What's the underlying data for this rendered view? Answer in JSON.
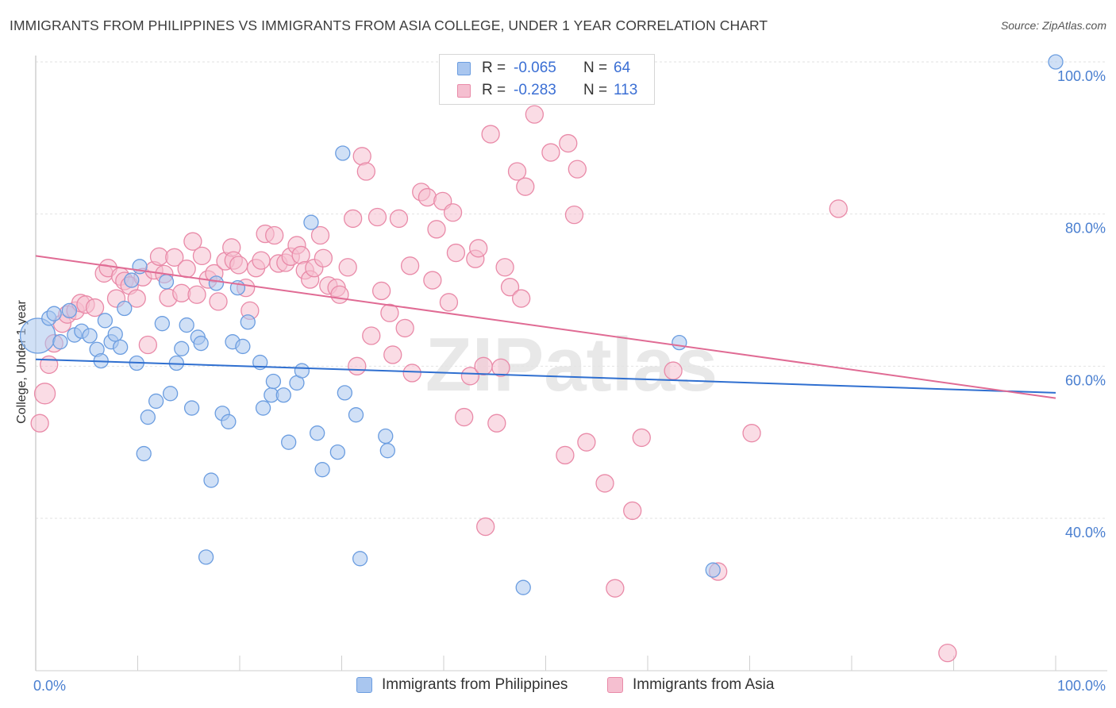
{
  "title": "IMMIGRANTS FROM PHILIPPINES VS IMMIGRANTS FROM ASIA COLLEGE, UNDER 1 YEAR CORRELATION CHART",
  "source": "Source: ZipAtlas.com",
  "watermark": "ZIPatlas",
  "colors": {
    "blue": "#6b9de0",
    "blue_fill": "#a9c6ef",
    "blue_line": "#2f6fd0",
    "pink": "#e98aa8",
    "pink_fill": "#f5bfd0",
    "pink_line": "#e06b94",
    "tick_text": "#4a7fd0",
    "grid": "#e2e2e2"
  },
  "legend": {
    "rows": [
      {
        "r_label": "R =",
        "r_value": "-0.065",
        "n_label": "N =",
        "n_value": "64",
        "color": "#a9c6ef",
        "border": "#6b9de0"
      },
      {
        "r_label": "R =",
        "r_value": "-0.283",
        "n_label": "N =",
        "n_value": "113",
        "color": "#f5bfd0",
        "border": "#e98aa8"
      }
    ]
  },
  "bottom_legend": [
    {
      "label": "Immigrants from Philippines",
      "color": "#a9c6ef",
      "border": "#6b9de0"
    },
    {
      "label": "Immigrants from Asia",
      "color": "#f5bfd0",
      "border": "#e98aa8"
    }
  ],
  "chart_data": {
    "type": "scatter",
    "title": "IMMIGRANTS FROM PHILIPPINES VS IMMIGRANTS FROM ASIA COLLEGE, UNDER 1 YEAR CORRELATION CHART",
    "xlabel": "",
    "ylabel": "College, Under 1 year",
    "xlim": [
      0,
      100
    ],
    "ylim": [
      20,
      102
    ],
    "y_ticks": [
      {
        "value": 40,
        "label": "40.0%"
      },
      {
        "value": 60,
        "label": "60.0%"
      },
      {
        "value": 80,
        "label": "80.0%"
      },
      {
        "value": 100,
        "label": "100.0%"
      }
    ],
    "x_ticks": [
      {
        "value": 0,
        "label": "0.0%"
      },
      {
        "value": 100,
        "label": "100.0%"
      }
    ],
    "grid": true,
    "legend_position": "top-center",
    "series": [
      {
        "name": "Immigrants from Philippines",
        "color": "#6b9de0",
        "trend": [
          [
            0,
            60.9
          ],
          [
            100,
            56.5
          ]
        ],
        "points": [
          [
            0.2,
            64.0,
            22
          ],
          [
            1.3,
            66.3,
            9
          ],
          [
            1.8,
            66.9,
            9
          ],
          [
            2.4,
            63.2,
            9
          ],
          [
            3.3,
            67.3,
            9
          ],
          [
            3.8,
            64.1,
            9
          ],
          [
            4.5,
            64.6,
            9
          ],
          [
            5.3,
            64.0,
            9
          ],
          [
            6.0,
            62.2,
            9
          ],
          [
            6.4,
            60.7,
            9
          ],
          [
            6.8,
            66.0,
            9
          ],
          [
            7.4,
            63.2,
            9
          ],
          [
            7.8,
            64.2,
            9
          ],
          [
            8.3,
            62.5,
            9
          ],
          [
            8.7,
            67.6,
            9
          ],
          [
            9.4,
            71.3,
            9
          ],
          [
            9.9,
            60.4,
            9
          ],
          [
            10.2,
            73.1,
            9
          ],
          [
            10.6,
            48.5,
            9
          ],
          [
            11.0,
            53.3,
            9
          ],
          [
            11.8,
            55.4,
            9
          ],
          [
            12.4,
            65.6,
            9
          ],
          [
            12.8,
            71.1,
            9
          ],
          [
            13.2,
            56.4,
            9
          ],
          [
            13.8,
            60.4,
            9
          ],
          [
            14.3,
            62.3,
            9
          ],
          [
            14.8,
            65.4,
            9
          ],
          [
            15.3,
            54.5,
            9
          ],
          [
            15.9,
            63.8,
            9
          ],
          [
            16.2,
            63.0,
            9
          ],
          [
            16.7,
            34.9,
            9
          ],
          [
            17.2,
            45.0,
            9
          ],
          [
            17.7,
            70.9,
            9
          ],
          [
            18.3,
            53.8,
            9
          ],
          [
            18.9,
            52.7,
            9
          ],
          [
            19.3,
            63.2,
            9
          ],
          [
            19.8,
            70.3,
            9
          ],
          [
            20.3,
            62.6,
            9
          ],
          [
            20.8,
            65.8,
            9
          ],
          [
            22.0,
            60.5,
            9
          ],
          [
            22.3,
            54.5,
            9
          ],
          [
            23.1,
            56.2,
            9
          ],
          [
            23.3,
            58.0,
            9
          ],
          [
            24.3,
            56.2,
            9
          ],
          [
            24.8,
            50.0,
            9
          ],
          [
            25.6,
            57.8,
            9
          ],
          [
            26.1,
            59.4,
            9
          ],
          [
            27.0,
            78.9,
            9
          ],
          [
            27.6,
            51.2,
            9
          ],
          [
            28.1,
            46.4,
            9
          ],
          [
            29.6,
            48.7,
            9
          ],
          [
            30.1,
            88.0,
            9
          ],
          [
            30.3,
            56.5,
            9
          ],
          [
            31.4,
            53.6,
            9
          ],
          [
            31.8,
            34.7,
            9
          ],
          [
            34.3,
            50.8,
            9
          ],
          [
            34.5,
            48.9,
            9
          ],
          [
            47.8,
            30.9,
            9
          ],
          [
            63.1,
            63.1,
            9
          ],
          [
            66.4,
            33.2,
            9
          ],
          [
            100.0,
            100.0,
            9
          ]
        ]
      },
      {
        "name": "Immigrants from Asia",
        "color": "#e98aa8",
        "trend": [
          [
            0,
            74.5
          ],
          [
            100,
            55.8
          ]
        ],
        "points": [
          [
            0.4,
            52.5,
            11
          ],
          [
            0.9,
            56.4,
            13
          ],
          [
            1.3,
            60.2,
            11
          ],
          [
            1.8,
            63.0,
            11
          ],
          [
            2.6,
            65.6,
            11
          ],
          [
            3.1,
            66.8,
            11
          ],
          [
            3.9,
            67.3,
            11
          ],
          [
            4.4,
            68.3,
            11
          ],
          [
            4.9,
            68.1,
            11
          ],
          [
            5.8,
            67.7,
            11
          ],
          [
            6.7,
            72.2,
            11
          ],
          [
            7.1,
            72.9,
            11
          ],
          [
            7.9,
            68.9,
            11
          ],
          [
            8.3,
            71.8,
            11
          ],
          [
            8.7,
            71.2,
            11
          ],
          [
            9.2,
            70.6,
            11
          ],
          [
            9.9,
            68.9,
            11
          ],
          [
            10.5,
            71.7,
            11
          ],
          [
            11.0,
            62.8,
            11
          ],
          [
            11.6,
            72.6,
            11
          ],
          [
            12.1,
            74.4,
            11
          ],
          [
            12.6,
            72.1,
            11
          ],
          [
            13.0,
            69.0,
            11
          ],
          [
            13.6,
            74.3,
            11
          ],
          [
            14.3,
            69.6,
            11
          ],
          [
            14.8,
            72.8,
            11
          ],
          [
            15.4,
            76.4,
            11
          ],
          [
            15.8,
            69.4,
            11
          ],
          [
            16.3,
            74.5,
            11
          ],
          [
            16.9,
            71.4,
            11
          ],
          [
            17.5,
            72.2,
            11
          ],
          [
            17.9,
            68.5,
            11
          ],
          [
            18.6,
            73.8,
            11
          ],
          [
            19.2,
            75.6,
            11
          ],
          [
            19.4,
            73.9,
            11
          ],
          [
            19.9,
            73.3,
            11
          ],
          [
            20.6,
            70.3,
            11
          ],
          [
            21.0,
            67.3,
            11
          ],
          [
            21.6,
            72.9,
            11
          ],
          [
            22.1,
            73.9,
            11
          ],
          [
            22.5,
            77.4,
            11
          ],
          [
            23.4,
            77.2,
            11
          ],
          [
            23.8,
            73.5,
            11
          ],
          [
            24.5,
            73.6,
            11
          ],
          [
            25.0,
            74.4,
            11
          ],
          [
            25.6,
            75.9,
            11
          ],
          [
            26.0,
            74.6,
            11
          ],
          [
            26.4,
            72.6,
            11
          ],
          [
            26.9,
            71.4,
            11
          ],
          [
            27.3,
            72.9,
            11
          ],
          [
            27.9,
            77.2,
            11
          ],
          [
            28.2,
            74.2,
            11
          ],
          [
            28.7,
            70.6,
            11
          ],
          [
            29.5,
            70.3,
            11
          ],
          [
            29.8,
            69.4,
            11
          ],
          [
            30.6,
            73.0,
            11
          ],
          [
            31.1,
            79.4,
            11
          ],
          [
            31.5,
            60.0,
            11
          ],
          [
            32.0,
            87.6,
            11
          ],
          [
            32.4,
            85.6,
            11
          ],
          [
            32.9,
            64.0,
            11
          ],
          [
            33.5,
            79.6,
            11
          ],
          [
            33.9,
            69.9,
            11
          ],
          [
            34.7,
            67.0,
            11
          ],
          [
            35.0,
            61.5,
            11
          ],
          [
            35.6,
            79.4,
            11
          ],
          [
            36.2,
            65.0,
            11
          ],
          [
            36.7,
            73.2,
            11
          ],
          [
            36.9,
            59.1,
            11
          ],
          [
            37.8,
            82.9,
            11
          ],
          [
            38.4,
            82.2,
            11
          ],
          [
            38.9,
            71.3,
            11
          ],
          [
            39.3,
            78.0,
            11
          ],
          [
            39.9,
            81.7,
            11
          ],
          [
            40.5,
            68.4,
            11
          ],
          [
            40.9,
            80.2,
            11
          ],
          [
            41.2,
            74.9,
            11
          ],
          [
            42.0,
            53.3,
            11
          ],
          [
            42.6,
            58.7,
            11
          ],
          [
            43.1,
            74.1,
            11
          ],
          [
            43.4,
            75.5,
            11
          ],
          [
            43.9,
            60.0,
            11
          ],
          [
            44.1,
            38.9,
            11
          ],
          [
            44.6,
            90.5,
            11
          ],
          [
            45.2,
            52.5,
            11
          ],
          [
            45.6,
            59.8,
            11
          ],
          [
            46.0,
            73.0,
            11
          ],
          [
            46.5,
            70.4,
            11
          ],
          [
            47.2,
            85.6,
            11
          ],
          [
            47.6,
            68.9,
            11
          ],
          [
            48.0,
            83.6,
            11
          ],
          [
            48.9,
            93.1,
            11
          ],
          [
            50.5,
            88.1,
            11
          ],
          [
            51.9,
            48.3,
            11
          ],
          [
            52.2,
            89.3,
            11
          ],
          [
            52.8,
            79.9,
            11
          ],
          [
            53.1,
            85.9,
            11
          ],
          [
            54.0,
            50.0,
            11
          ],
          [
            55.8,
            44.6,
            11
          ],
          [
            56.8,
            30.8,
            11
          ],
          [
            58.5,
            41.0,
            11
          ],
          [
            59.4,
            50.6,
            11
          ],
          [
            62.5,
            59.4,
            11
          ],
          [
            66.9,
            33.0,
            11
          ],
          [
            70.2,
            51.2,
            11
          ],
          [
            78.7,
            80.7,
            11
          ],
          [
            89.4,
            22.3,
            11
          ]
        ]
      }
    ]
  }
}
